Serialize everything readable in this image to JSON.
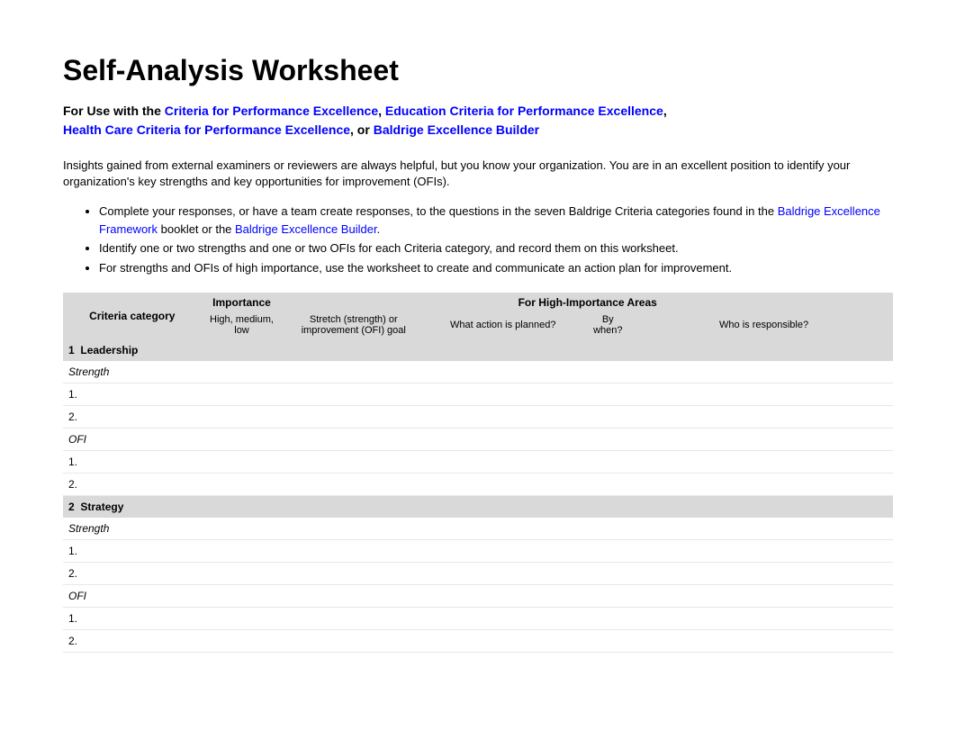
{
  "title": "Self-Analysis Worksheet",
  "subtitle": {
    "prefix": "For Use with the ",
    "link1": "Criteria for Performance Excellence",
    "sep1": ", ",
    "link2": "Education Criteria for Performance Excellence",
    "sep2": ",",
    "link3": "Health Care Criteria for Performance Excellence",
    "sep3": ", or ",
    "link4": "Baldrige Excellence Builder"
  },
  "intro": "Insights gained from external examiners or reviewers are always helpful, but you know your organization. You are in an excellent position to identify your organization's key strengths and key opportunities for improvement (OFIs).",
  "bullets": {
    "b1_pre": "Complete your responses, or have a team create responses, to the questions in the seven Baldrige Criteria categories found in the ",
    "b1_link1": "Baldrige Excellence Framework",
    "b1_mid": " booklet or the ",
    "b1_link2": "Baldrige Excellence Builder",
    "b1_post": ".",
    "b2": "Identify one or two strengths and one or two OFIs for each Criteria category, and record them on this worksheet.",
    "b3": "For strengths and OFIs of high importance, use the worksheet to create and communicate an action plan for improvement."
  },
  "headers": {
    "criteria": "Criteria category",
    "importance_top": "Importance",
    "importance_sub": "High, medium, low",
    "high_areas": "For High-Importance Areas",
    "goal": "Stretch (strength) or improvement (OFI) goal",
    "action": "What action is planned?",
    "when": "By when?",
    "who": "Who is responsible?"
  },
  "categories": [
    {
      "num": "1",
      "name": "Leadership"
    },
    {
      "num": "2",
      "name": "Strategy"
    }
  ],
  "row_labels": {
    "strength": "Strength",
    "ofi": "OFI",
    "one": "1.",
    "two": "2."
  }
}
